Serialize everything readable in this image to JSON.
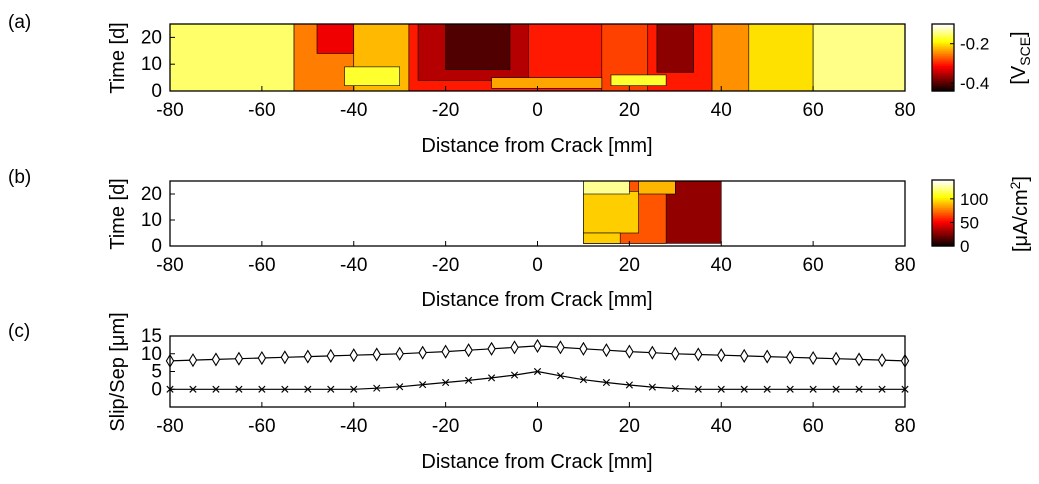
{
  "chart_data": [
    {
      "panel": "(a)",
      "type": "heatmap",
      "xlabel": "Distance from Crack [mm]",
      "ylabel": "Time [d]",
      "xlim": [
        -80,
        80
      ],
      "ylim": [
        0,
        25
      ],
      "xticks": [
        "-80",
        "-60",
        "-40",
        "-20",
        "0",
        "20",
        "40",
        "60",
        "80"
      ],
      "yticks": [
        "0",
        "10",
        "20"
      ],
      "colorbar": {
        "label": "[V",
        "label_sub": "SCE",
        "label_end": "]",
        "ticks": [
          "-0.2",
          "-0.4"
        ],
        "range": [
          -0.44,
          -0.1
        ]
      },
      "colormap": "hot",
      "regions": [
        {
          "x": [
            -80,
            -53
          ],
          "t": [
            0,
            25
          ],
          "value": -0.15
        },
        {
          "x": [
            -53,
            -40
          ],
          "t": [
            0,
            25
          ],
          "value": -0.25
        },
        {
          "x": [
            -48,
            -40
          ],
          "t": [
            14,
            25
          ],
          "value": -0.32
        },
        {
          "x": [
            -40,
            -28
          ],
          "t": [
            0,
            25
          ],
          "value": -0.22
        },
        {
          "x": [
            -28,
            14
          ],
          "t": [
            0,
            25
          ],
          "value": -0.3
        },
        {
          "x": [
            -26,
            -2
          ],
          "t": [
            4,
            25
          ],
          "value": -0.35
        },
        {
          "x": [
            -20,
            -6
          ],
          "t": [
            8,
            25
          ],
          "value": -0.4
        },
        {
          "x": [
            14,
            24
          ],
          "t": [
            0,
            25
          ],
          "value": -0.28
        },
        {
          "x": [
            24,
            38
          ],
          "t": [
            0,
            25
          ],
          "value": -0.3
        },
        {
          "x": [
            26,
            34
          ],
          "t": [
            7,
            25
          ],
          "value": -0.37
        },
        {
          "x": [
            38,
            46
          ],
          "t": [
            0,
            25
          ],
          "value": -0.24
        },
        {
          "x": [
            46,
            60
          ],
          "t": [
            0,
            25
          ],
          "value": -0.2
        },
        {
          "x": [
            60,
            80
          ],
          "t": [
            0,
            25
          ],
          "value": -0.14
        },
        {
          "x": [
            -42,
            -30
          ],
          "t": [
            2,
            9
          ],
          "value": -0.17
        },
        {
          "x": [
            -10,
            14
          ],
          "t": [
            1,
            5
          ],
          "value": -0.23
        },
        {
          "x": [
            16,
            28
          ],
          "t": [
            2,
            6
          ],
          "value": -0.17
        }
      ]
    },
    {
      "panel": "(b)",
      "type": "heatmap",
      "xlabel": "Distance from Crack [mm]",
      "ylabel": "Time [d]",
      "xlim": [
        -80,
        80
      ],
      "ylim": [
        0,
        25
      ],
      "xticks": [
        "-80",
        "-60",
        "-40",
        "-20",
        "0",
        "20",
        "40",
        "60",
        "80"
      ],
      "yticks": [
        "0",
        "10",
        "20"
      ],
      "colorbar": {
        "label": "[μA/cm",
        "label_sup": "2",
        "label_end": "]",
        "ticks": [
          "100",
          "50",
          "0"
        ],
        "range": [
          0,
          140
        ]
      },
      "colormap": "hot",
      "regions": [
        {
          "x": [
            10,
            40
          ],
          "t": [
            1,
            25
          ],
          "value": 30
        },
        {
          "x": [
            10,
            28
          ],
          "t": [
            1,
            25
          ],
          "value": 70
        },
        {
          "x": [
            10,
            22
          ],
          "t": [
            5,
            21
          ],
          "value": 95
        },
        {
          "x": [
            10,
            20
          ],
          "t": [
            20,
            25
          ],
          "value": 125
        },
        {
          "x": [
            22,
            30
          ],
          "t": [
            20,
            25
          ],
          "value": 90
        },
        {
          "x": [
            10,
            18
          ],
          "t": [
            1,
            5
          ],
          "value": 95
        }
      ]
    },
    {
      "panel": "(c)",
      "type": "line",
      "xlabel": "Distance from Crack [mm]",
      "ylabel": "Slip/Sep [μm]",
      "xlim": [
        -80,
        80
      ],
      "ylim": [
        -5,
        15
      ],
      "xticks": [
        "-80",
        "-60",
        "-40",
        "-20",
        "0",
        "20",
        "40",
        "60",
        "80"
      ],
      "yticks": [
        "0",
        "5",
        "10",
        "15"
      ],
      "x": [
        -80,
        -75,
        -70,
        -65,
        -60,
        -55,
        -50,
        -45,
        -40,
        -35,
        -30,
        -25,
        -20,
        -15,
        -10,
        -5,
        0,
        5,
        10,
        15,
        20,
        25,
        30,
        35,
        40,
        45,
        50,
        55,
        60,
        65,
        70,
        75,
        80
      ],
      "series": [
        {
          "marker": "diamond",
          "values": [
            8,
            8.2,
            8.4,
            8.6,
            8.8,
            9,
            9.2,
            9.4,
            9.6,
            9.8,
            10,
            10.3,
            10.6,
            11,
            11.4,
            11.8,
            12.2,
            11.8,
            11.4,
            11,
            10.6,
            10.3,
            10,
            9.8,
            9.6,
            9.4,
            9.2,
            9,
            8.8,
            8.6,
            8.4,
            8.2,
            8
          ]
        },
        {
          "marker": "x",
          "values": [
            0,
            0,
            0,
            0,
            0,
            0,
            0,
            0,
            0,
            0.3,
            0.7,
            1.3,
            1.9,
            2.5,
            3.2,
            4.0,
            5.0,
            3.8,
            2.7,
            1.9,
            1.2,
            0.6,
            0.2,
            0,
            0,
            0,
            0,
            0,
            0,
            0,
            0,
            0,
            0
          ]
        }
      ]
    }
  ]
}
